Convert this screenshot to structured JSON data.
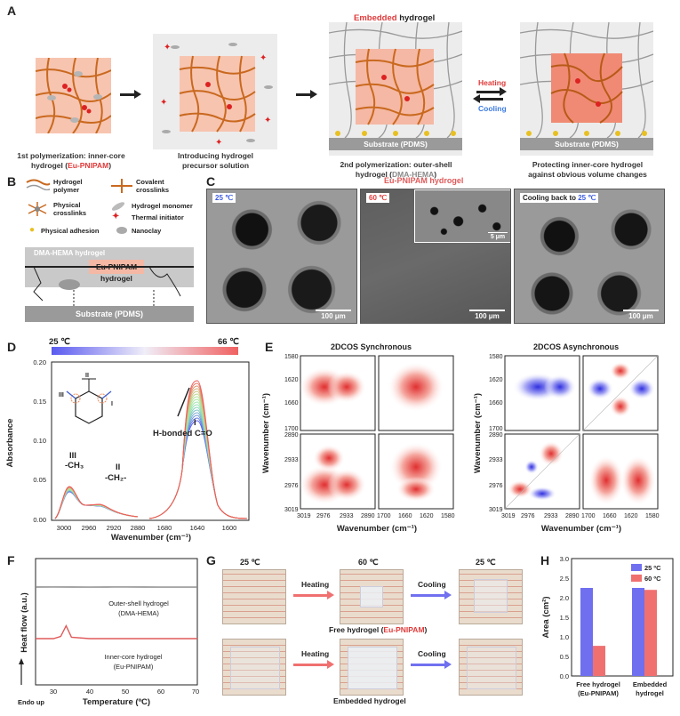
{
  "panels": {
    "A": "A",
    "B": "B",
    "C": "C",
    "D": "D",
    "E": "E",
    "F": "F",
    "G": "G",
    "H": "H"
  },
  "a": {
    "embedded_label_colored": "Embedded",
    "embedded_label_rest": " hydrogel",
    "step1_l1": "1st polymerization: inner-core",
    "step1_l2a": "hydrogel (",
    "step1_l2b": "Eu-PNIPAM",
    "step1_l2c": ")",
    "step2_l1": "Introducing hydrogel",
    "step2_l2": "precursor solution",
    "step3_l1": "2nd polymerization: outer-shell",
    "step3_l2a": "hydrogel (",
    "step3_l2b": "DMA-HEMA",
    "step3_l2c": ")",
    "step4_l1": "Protecting inner-core hydrogel",
    "step4_l2": "against obvious volume changes",
    "substrate": "Substrate (PDMS)",
    "heating": "Heating",
    "cooling": "Cooling"
  },
  "b": {
    "legend": [
      {
        "icon": "hydrogel-polymer-icon",
        "text": "Hydrogel polymer"
      },
      {
        "icon": "covalent-crosslinks-icon",
        "text": "Covalent crosslinks"
      },
      {
        "icon": "physical-crosslinks-icon",
        "text": "Physical crosslinks"
      },
      {
        "icon": "hydrogel-monomer-icon",
        "text": "Hydrogel monomer"
      },
      {
        "icon": "thermal-initiator-icon",
        "text": "Thermal initiator"
      },
      {
        "icon": "physical-adhesion-icon",
        "text": "Physical adhesion"
      },
      {
        "icon": "nanoclay-icon",
        "text": "Nanoclay"
      }
    ],
    "shell": "DMA-HEMA hydrogel",
    "core": "Eu-PNIPAM",
    "core2": "hydrogel",
    "substrate": "Substrate (PDMS)"
  },
  "c": {
    "title": "Eu-PNIPAM hydrogel",
    "t1": "25 ℃",
    "t2": "60 ℃",
    "t3a": "Cooling back to ",
    "t3b": "25 ℃",
    "scale": "100 μm",
    "inset_scale": "5 μm"
  },
  "d": {
    "temp_low": "25 ℃",
    "temp_high": "66 ℃",
    "ylabel": "Absorbance",
    "xlabel": "Wavenumber (cm⁻¹)",
    "yticks": [
      "0.00",
      "0.05",
      "0.10",
      "0.15",
      "0.20"
    ],
    "xticks_left": [
      "3000",
      "2960",
      "2920",
      "2880"
    ],
    "xticks_right": [
      "1680",
      "1640",
      "1600"
    ],
    "ann_I": "I",
    "ann_I2": "H-bonded C=O",
    "ann_II": "II",
    "ann_II2": "-CH₂-",
    "ann_III": "III",
    "ann_III2": "-CH₃"
  },
  "e": {
    "sync_title": "2DCOS Synchronous",
    "async_title": "2DCOS Asynchronous",
    "ylabel": "Wavenumber (cm⁻¹)",
    "xlabel": "Wavenumber (cm⁻¹)",
    "yticks_top": [
      "1580",
      "1620",
      "1660",
      "1700"
    ],
    "yticks_bot": [
      "2890",
      "2933",
      "2976",
      "3019"
    ],
    "xticks": [
      "3019",
      "2976",
      "2933",
      "2890",
      "1700",
      "1660",
      "1620",
      "1580"
    ]
  },
  "f": {
    "ylabel": "Heat flow (a.u.)",
    "xlabel": "Temperature (ºC)",
    "xticks": [
      "30",
      "40",
      "50",
      "60",
      "70"
    ],
    "endo": "Endo up",
    "outer_l1": "Outer-shell hydrogel",
    "outer_l2": "(DMA-HEMA)",
    "inner_l1": "Inner-core hydrogel",
    "inner_l2": "(Eu-PNIPAM)"
  },
  "g": {
    "t1": "25 ℃",
    "t2": "60 ℃",
    "t3": "25 ℃",
    "heating": "Heating",
    "cooling": "Cooling",
    "free_a": "Free hydrogel (",
    "free_b": "Eu-PNIPAM",
    "free_c": ")",
    "embedded": "Embedded hydrogel"
  },
  "h": {
    "ylabel": "Area (cm²)",
    "legend_25": "25 ºC",
    "legend_60": "60 ºC",
    "cat1_a": "Free hydrogel",
    "cat1_b": "(Eu-PNIPAM)",
    "cat2_a": "Embedded",
    "cat2_b": "hydrogel"
  },
  "chart_data": [
    {
      "type": "bar",
      "panel": "H",
      "categories": [
        "Free hydrogel (Eu-PNIPAM)",
        "Embedded hydrogel"
      ],
      "series": [
        {
          "name": "25 ºC",
          "values": [
            2.25,
            2.25
          ],
          "color": "#6f6ff0"
        },
        {
          "name": "60 ºC",
          "values": [
            0.77,
            2.2
          ],
          "color": "#f07070"
        }
      ],
      "ylabel": "Area (cm²)",
      "ylim": [
        0,
        3.0
      ],
      "yticks": [
        "0.0",
        "0.5",
        "1.0",
        "1.5",
        "2.0",
        "2.5",
        "3.0"
      ]
    },
    {
      "type": "line",
      "panel": "F",
      "xlabel": "Temperature (ºC)",
      "ylabel": "Heat flow (a.u.)",
      "xlim": [
        25,
        70
      ],
      "series": [
        {
          "name": "Outer-shell hydrogel (DMA-HEMA)",
          "color": "#888888",
          "x": [
            25,
            30,
            35,
            40,
            45,
            50,
            55,
            60,
            65,
            70
          ],
          "y": [
            1.0,
            1.01,
            1.0,
            0.99,
            1.0,
            1.01,
            1.0,
            0.99,
            0.98,
            0.99
          ]
        },
        {
          "name": "Inner-core hydrogel (Eu-PNIPAM)",
          "color": "#e05a5a",
          "x": [
            25,
            30,
            32,
            33.5,
            35,
            40,
            50,
            60,
            70
          ],
          "y": [
            0.0,
            0.0,
            0.03,
            0.18,
            0.02,
            0.0,
            0.0,
            0.0,
            0.0
          ]
        }
      ]
    }
  ]
}
